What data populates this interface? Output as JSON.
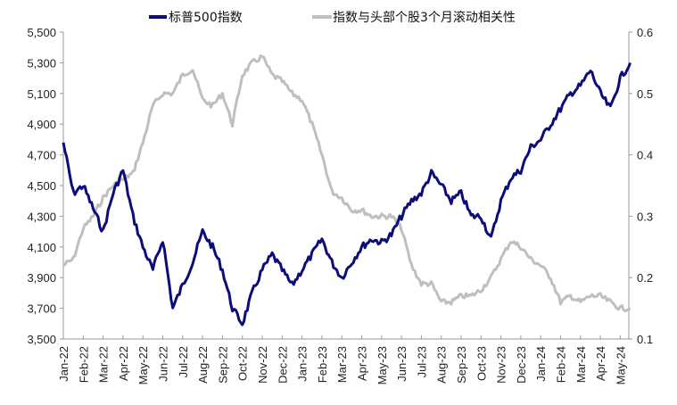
{
  "chart_data": {
    "type": "line",
    "title": "",
    "legend_position": "top-center",
    "x_unit": "half-month index from Jan-22",
    "x_tick_labels": [
      "Jan-22",
      "Feb-22",
      "Mar-22",
      "Apr-22",
      "May-22",
      "Jun-22",
      "Jul-22",
      "Aug-22",
      "Sep-22",
      "Oct-22",
      "Nov-22",
      "Dec-22",
      "Jan-23",
      "Feb-23",
      "Mar-23",
      "Apr-23",
      "May-23",
      "Jun-23",
      "Jul-23",
      "Aug-23",
      "Sep-23",
      "Oct-23",
      "Nov-23",
      "Dec-23",
      "Jan-24",
      "Feb-24",
      "Mar-24",
      "Apr-24",
      "May-24"
    ],
    "y_left": {
      "ylim": [
        3500,
        5500
      ],
      "ticks": [
        "3,500",
        "3,700",
        "3,900",
        "4,100",
        "4,300",
        "4,500",
        "4,700",
        "4,900",
        "5,100",
        "5,300",
        "5,500"
      ]
    },
    "y_right": {
      "ylim": [
        0.1,
        0.6
      ],
      "ticks": [
        "0.1",
        "0.2",
        "0.3",
        "0.4",
        "0.5",
        "0.6"
      ]
    },
    "series": [
      {
        "name": "标普500指数",
        "axis": "left",
        "color": "#0d0d7a",
        "values": [
          4780,
          4450,
          4500,
          4350,
          4200,
          4450,
          4600,
          4300,
          4100,
          3950,
          4150,
          3700,
          3850,
          4000,
          4200,
          4100,
          3950,
          3700,
          3600,
          3800,
          3950,
          4050,
          3950,
          3850,
          3950,
          4050,
          4150,
          4000,
          3900,
          4000,
          4100,
          4150,
          4130,
          4180,
          4300,
          4400,
          4450,
          4580,
          4500,
          4400,
          4450,
          4300,
          4300,
          4150,
          4400,
          4550,
          4600,
          4750,
          4800,
          4900,
          5000,
          5100,
          5150,
          5250,
          5100,
          5000,
          5200,
          5300
        ]
      },
      {
        "name": "指数与头部个股3个月滚动相关性",
        "axis": "right",
        "color": "#bfbfbf",
        "values": [
          0.22,
          0.23,
          0.28,
          0.3,
          0.33,
          0.35,
          0.36,
          0.37,
          0.42,
          0.48,
          0.5,
          0.5,
          0.53,
          0.54,
          0.49,
          0.48,
          0.5,
          0.45,
          0.53,
          0.55,
          0.56,
          0.53,
          0.52,
          0.5,
          0.49,
          0.45,
          0.4,
          0.34,
          0.33,
          0.31,
          0.31,
          0.3,
          0.3,
          0.3,
          0.28,
          0.22,
          0.19,
          0.19,
          0.16,
          0.16,
          0.17,
          0.17,
          0.18,
          0.2,
          0.23,
          0.26,
          0.25,
          0.23,
          0.22,
          0.2,
          0.16,
          0.17,
          0.16,
          0.17,
          0.17,
          0.16,
          0.15,
          0.15
        ]
      }
    ]
  }
}
